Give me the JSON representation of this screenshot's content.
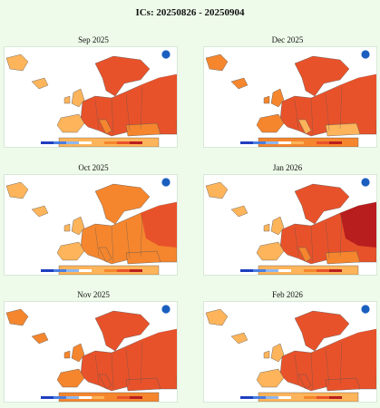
{
  "header": {
    "title": "ICs: 20250826 - 20250904"
  },
  "panels": [
    {
      "month_label": "Sep 2025"
    },
    {
      "month_label": "Dec 2025"
    },
    {
      "month_label": "Oct 2025"
    },
    {
      "month_label": "Jan 2026"
    },
    {
      "month_label": "Nov 2025"
    },
    {
      "month_label": "Feb 2026"
    }
  ],
  "colors": {
    "ocean": "#ffffff",
    "land_white": "#ffffff",
    "light_orange": "#fdb45a",
    "orange": "#f5862e",
    "red_orange": "#e8522a",
    "dark_red": "#b81e1e",
    "coast": "#555555",
    "logo_blue": "#1a5fbf"
  },
  "icons": {
    "agency_logo": "noaa-logo-icon"
  }
}
